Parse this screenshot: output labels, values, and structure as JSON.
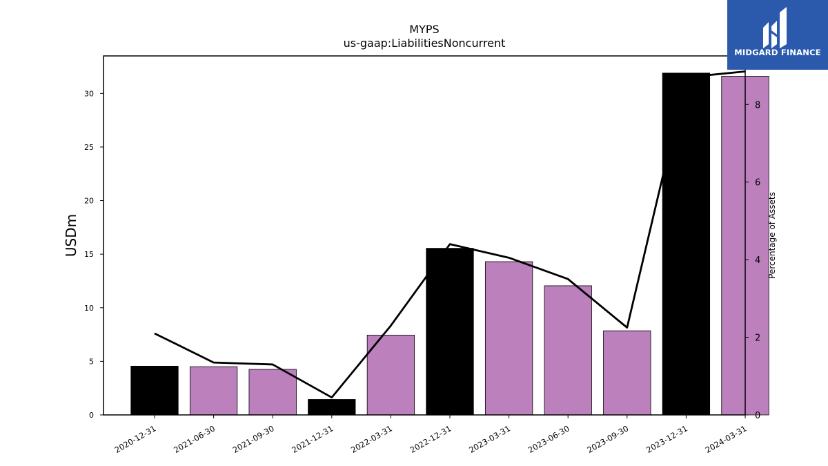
{
  "logo": {
    "text": "MIDGARD FINANCE",
    "color": "#2b5aad"
  },
  "chart_data": {
    "type": "bar",
    "title": "MYPS",
    "subtitle": "us-gaap:LiabilitiesNoncurrent",
    "ylabel": "USDm",
    "y2label": "Percentage of Assets",
    "categories": [
      "2020-12-31",
      "2021-06-30",
      "2021-09-30",
      "2021-12-31",
      "2022-03-31",
      "2022-12-31",
      "2023-03-31",
      "2023-06-30",
      "2023-09-30",
      "2023-12-31",
      "2024-03-31"
    ],
    "series": [
      {
        "type": "bar",
        "values": [
          4.55,
          4.5,
          4.25,
          1.45,
          7.45,
          15.55,
          14.3,
          12.05,
          7.85,
          31.9,
          31.6
        ],
        "colors": [
          "#000000",
          "#bc80bd",
          "#bc80bd",
          "#000000",
          "#bc80bd",
          "#000000",
          "#bc80bd",
          "#bc80bd",
          "#bc80bd",
          "#000000",
          "#bc80bd"
        ]
      },
      {
        "type": "line",
        "axis": "right",
        "values": [
          2.1,
          1.35,
          1.3,
          0.45,
          2.3,
          4.4,
          4.05,
          3.5,
          2.25,
          8.7,
          8.85
        ],
        "color": "#000000"
      }
    ],
    "ylim": [
      0,
      33.5
    ],
    "yticks": [
      0,
      5,
      10,
      15,
      20,
      25,
      30
    ],
    "y2lim": [
      0,
      9.25
    ],
    "y2ticks": [
      0,
      2,
      4,
      6,
      8
    ],
    "grid": false,
    "legend": "none"
  }
}
